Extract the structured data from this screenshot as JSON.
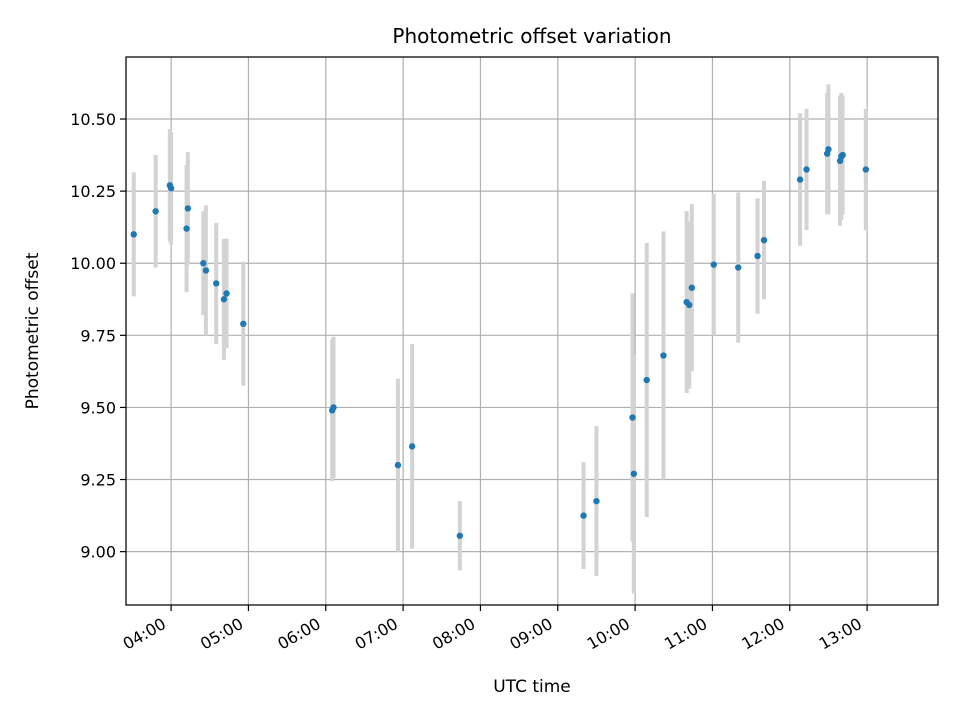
{
  "chart_data": {
    "type": "scatter",
    "title": "Photometric offset variation",
    "xlabel": "UTC time",
    "ylabel": "Photometric offset",
    "x_unit": "time of day (UTC, hours:minutes)",
    "xlim": [
      "03:25",
      "13:55"
    ],
    "ylim": [
      8.815,
      10.715
    ],
    "grid": true,
    "legend": "none",
    "x_ticks": [
      "04:00",
      "05:00",
      "06:00",
      "07:00",
      "08:00",
      "09:00",
      "10:00",
      "11:00",
      "12:00",
      "13:00"
    ],
    "y_ticks": [
      "9.00",
      "9.25",
      "9.50",
      "9.75",
      "10.00",
      "10.25",
      "10.50"
    ],
    "colors": {
      "point": "#1f77b4",
      "errorbar": "#d3d3d3",
      "grid": "#b0b0b0"
    },
    "series": [
      {
        "points": [
          {
            "x": "03:31",
            "y": 10.1,
            "err": 0.215
          },
          {
            "x": "03:48",
            "y": 10.18,
            "err": 0.195
          },
          {
            "x": "03:59",
            "y": 10.27,
            "err": 0.195
          },
          {
            "x": "04:00",
            "y": 10.26,
            "err": 0.195
          },
          {
            "x": "04:12",
            "y": 10.12,
            "err": 0.22
          },
          {
            "x": "04:13",
            "y": 10.19,
            "err": 0.195
          },
          {
            "x": "04:25",
            "y": 10.0,
            "err": 0.18
          },
          {
            "x": "04:27",
            "y": 9.975,
            "err": 0.225
          },
          {
            "x": "04:35",
            "y": 9.93,
            "err": 0.21
          },
          {
            "x": "04:41",
            "y": 9.875,
            "err": 0.21
          },
          {
            "x": "04:43",
            "y": 9.895,
            "err": 0.19
          },
          {
            "x": "04:56",
            "y": 9.79,
            "err": 0.215
          },
          {
            "x": "06:05",
            "y": 9.49,
            "err": 0.245
          },
          {
            "x": "06:06",
            "y": 9.5,
            "err": 0.245
          },
          {
            "x": "06:56",
            "y": 9.3,
            "err": 0.3
          },
          {
            "x": "07:07",
            "y": 9.365,
            "err": 0.355
          },
          {
            "x": "07:44",
            "y": 9.055,
            "err": 0.12
          },
          {
            "x": "09:20",
            "y": 9.125,
            "err": 0.185
          },
          {
            "x": "09:30",
            "y": 9.175,
            "err": 0.26
          },
          {
            "x": "09:58",
            "y": 9.465,
            "err": 0.43
          },
          {
            "x": "09:59",
            "y": 9.27,
            "err": 0.415
          },
          {
            "x": "10:09",
            "y": 9.595,
            "err": 0.475
          },
          {
            "x": "10:22",
            "y": 9.68,
            "err": 0.43
          },
          {
            "x": "10:40",
            "y": 9.865,
            "err": 0.315
          },
          {
            "x": "10:42",
            "y": 9.855,
            "err": 0.29
          },
          {
            "x": "10:44",
            "y": 9.915,
            "err": 0.29
          },
          {
            "x": "11:01",
            "y": 9.995,
            "err": 0.245
          },
          {
            "x": "11:20",
            "y": 9.985,
            "err": 0.26
          },
          {
            "x": "11:35",
            "y": 10.025,
            "err": 0.2
          },
          {
            "x": "11:40",
            "y": 10.08,
            "err": 0.205
          },
          {
            "x": "12:08",
            "y": 10.29,
            "err": 0.23
          },
          {
            "x": "12:13",
            "y": 10.325,
            "err": 0.21
          },
          {
            "x": "12:29",
            "y": 10.38,
            "err": 0.21
          },
          {
            "x": "12:30",
            "y": 10.395,
            "err": 0.225
          },
          {
            "x": "12:39",
            "y": 10.355,
            "err": 0.225
          },
          {
            "x": "12:40",
            "y": 10.37,
            "err": 0.22
          },
          {
            "x": "12:41",
            "y": 10.375,
            "err": 0.205
          },
          {
            "x": "12:59",
            "y": 10.325,
            "err": 0.21
          }
        ]
      }
    ]
  }
}
